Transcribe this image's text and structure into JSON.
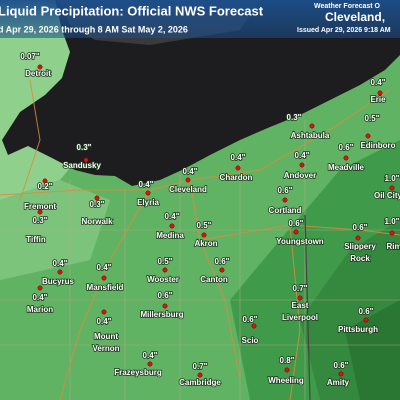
{
  "header": {
    "title": "Liquid Precipitation: Official NWS Forecast",
    "subtitle": "d Apr 29, 2026 through 8 AM Sat May 2, 2026",
    "office_line": "Weather Forecast O",
    "office": "Cleveland,",
    "issued": "Issued Apr 29, 2026 9:18 AM"
  },
  "stations": [
    {
      "amount": "0.07\"",
      "city": [
        "Detroit"
      ]
    },
    {
      "amount": "0.4\"",
      "city": [
        "Erie"
      ]
    },
    {
      "amount": "0.3\"",
      "city": [
        "Ashtabula"
      ]
    },
    {
      "amount": "0.5\"",
      "city": [
        "Edinboro"
      ]
    },
    {
      "amount": "0.6\"",
      "city": [
        "Meadville"
      ]
    },
    {
      "amount": "0.4\"",
      "city": [
        "Andover"
      ]
    },
    {
      "amount": "0.4\"",
      "city": [
        "Chardon"
      ]
    },
    {
      "amount": "1.0\"",
      "city": [
        "Oil City"
      ]
    },
    {
      "amount": "0.4\"",
      "city": [
        "Cleveland"
      ]
    },
    {
      "amount": "0.3\"",
      "city": [
        "Sandusky"
      ]
    },
    {
      "amount": "0.2\"",
      "city": [
        "Fremont"
      ]
    },
    {
      "amount": "0.3\"",
      "city": [
        "Norwalk"
      ]
    },
    {
      "amount": "0.4\"",
      "city": [
        "Elyria"
      ]
    },
    {
      "amount": "0.4\"",
      "city": [
        "Medina"
      ]
    },
    {
      "amount": "0.5\"",
      "city": [
        "Akron"
      ]
    },
    {
      "amount": "0.6\"",
      "city": [
        "Cortland"
      ]
    },
    {
      "amount": "0.6\"",
      "city": [
        "Youngstown"
      ]
    },
    {
      "amount": "0.6\"",
      "city": [
        "Slippery",
        "Rock"
      ]
    },
    {
      "amount": "1.0\"",
      "city": [
        "Rim"
      ]
    },
    {
      "amount": "0.3\"",
      "city": [
        "Tiffin"
      ]
    },
    {
      "amount": "0.4\"",
      "city": [
        "Bucyrus"
      ]
    },
    {
      "amount": "0.4\"",
      "city": [
        "Mansfield"
      ]
    },
    {
      "amount": "0.5\"",
      "city": [
        "Wooster"
      ]
    },
    {
      "amount": "0.6\"",
      "city": [
        "Canton"
      ]
    },
    {
      "amount": "0.7\"",
      "city": [
        "East",
        "Liverpool"
      ]
    },
    {
      "amount": "0.4\"",
      "city": [
        "Marion"
      ]
    },
    {
      "amount": "0.6\"",
      "city": [
        "Millersburg"
      ]
    },
    {
      "amount": "0.4\"",
      "city": [
        "Mount",
        "Vernon"
      ]
    },
    {
      "amount": "0.6\"",
      "city": [
        "Scio"
      ]
    },
    {
      "amount": "0.6\"",
      "city": [
        "Pittsburgh"
      ]
    },
    {
      "amount": "0.4\"",
      "city": [
        "Frazeysburg"
      ]
    },
    {
      "amount": "0.7\"",
      "city": [
        "Cambridge"
      ]
    },
    {
      "amount": "0.8\"",
      "city": [
        "Wheeling"
      ]
    },
    {
      "amount": "0.6\"",
      "city": [
        "Amity"
      ]
    }
  ]
}
